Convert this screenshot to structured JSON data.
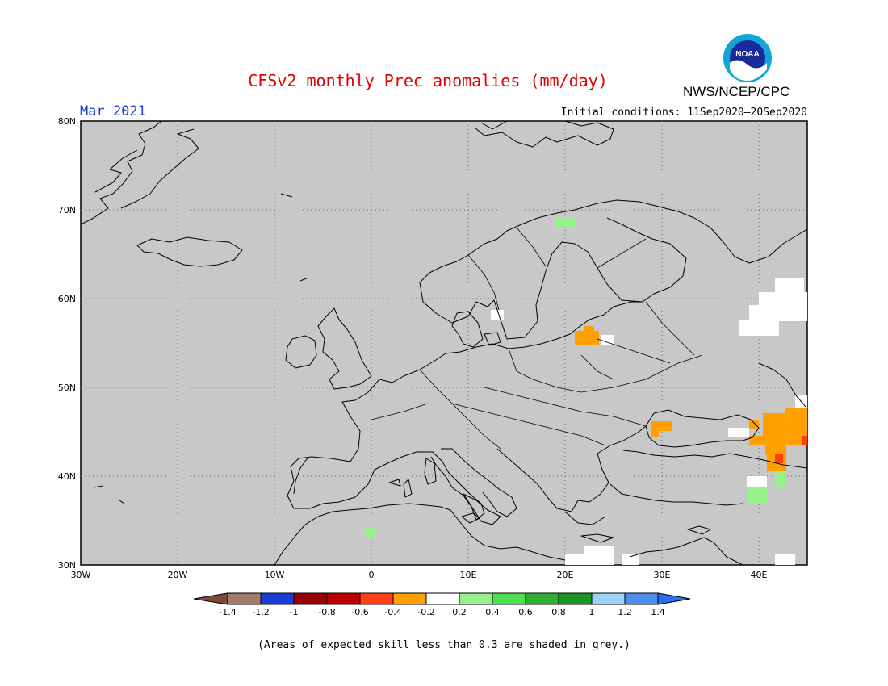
{
  "header": {
    "title": "CFSv2 monthly Prec anomalies (mm/day)",
    "month": "Mar 2021",
    "initial_conditions": "Initial conditions: 11Sep2020–20Sep2020",
    "agency": "NWS/NCEP/CPC",
    "logo_text": "NOAA"
  },
  "map": {
    "region": "Europe",
    "lon_range": [
      -30,
      45
    ],
    "lat_range": [
      30,
      80
    ],
    "background_color": "#c8c8c8",
    "lat_labels": [
      "80N",
      "70N",
      "60N",
      "50N",
      "40N",
      "30N"
    ],
    "lon_labels": [
      "30W",
      "20W",
      "10W",
      "0",
      "10E",
      "20E",
      "30E",
      "40E"
    ],
    "anomaly_areas": [
      {
        "region": "northern Norway",
        "lon": 20.5,
        "lat": 68.5,
        "class": "0.2 to 0.4"
      },
      {
        "region": "Lithuania",
        "lon": 23.0,
        "lat": 55.5,
        "class": "-0.4 to -0.2"
      },
      {
        "region": "Crimea",
        "lon": 33.0,
        "lat": 44.8,
        "class": "-0.4 to -0.2"
      },
      {
        "region": "Caucasus",
        "lon": 43.0,
        "lat": 44.5,
        "class": "-0.4 to -0.2"
      },
      {
        "region": "Georgia",
        "lon": 42.0,
        "lat": 41.8,
        "class": "-0.6 to -0.4"
      },
      {
        "region": "eastern Turkey",
        "lon": 40.0,
        "lat": 38.0,
        "class": "0.2 to 0.4"
      },
      {
        "region": "northern Algeria",
        "lon": 0.0,
        "lat": 33.6,
        "class": "0.2 to 0.4"
      }
    ]
  },
  "colorbar": {
    "colors": [
      "#7b4a3a",
      "#a37a6c",
      "#1a3cd6",
      "#9a0000",
      "#c00000",
      "#ff4010",
      "#ff9f00",
      "#ffffff",
      "#96f08c",
      "#4fe050",
      "#2faf30",
      "#1c9620",
      "#9ad2f8",
      "#4b90ec",
      "#2a6ef0"
    ],
    "labels": [
      "-1.4",
      "-1.2",
      "-1",
      "-0.8",
      "-0.6",
      "-0.4",
      "-0.2",
      "0.2",
      "0.4",
      "0.6",
      "0.8",
      "1",
      "1.2",
      "1.4"
    ]
  },
  "footnote": "(Areas of expected skill less than 0.3 are shaded in grey.)"
}
